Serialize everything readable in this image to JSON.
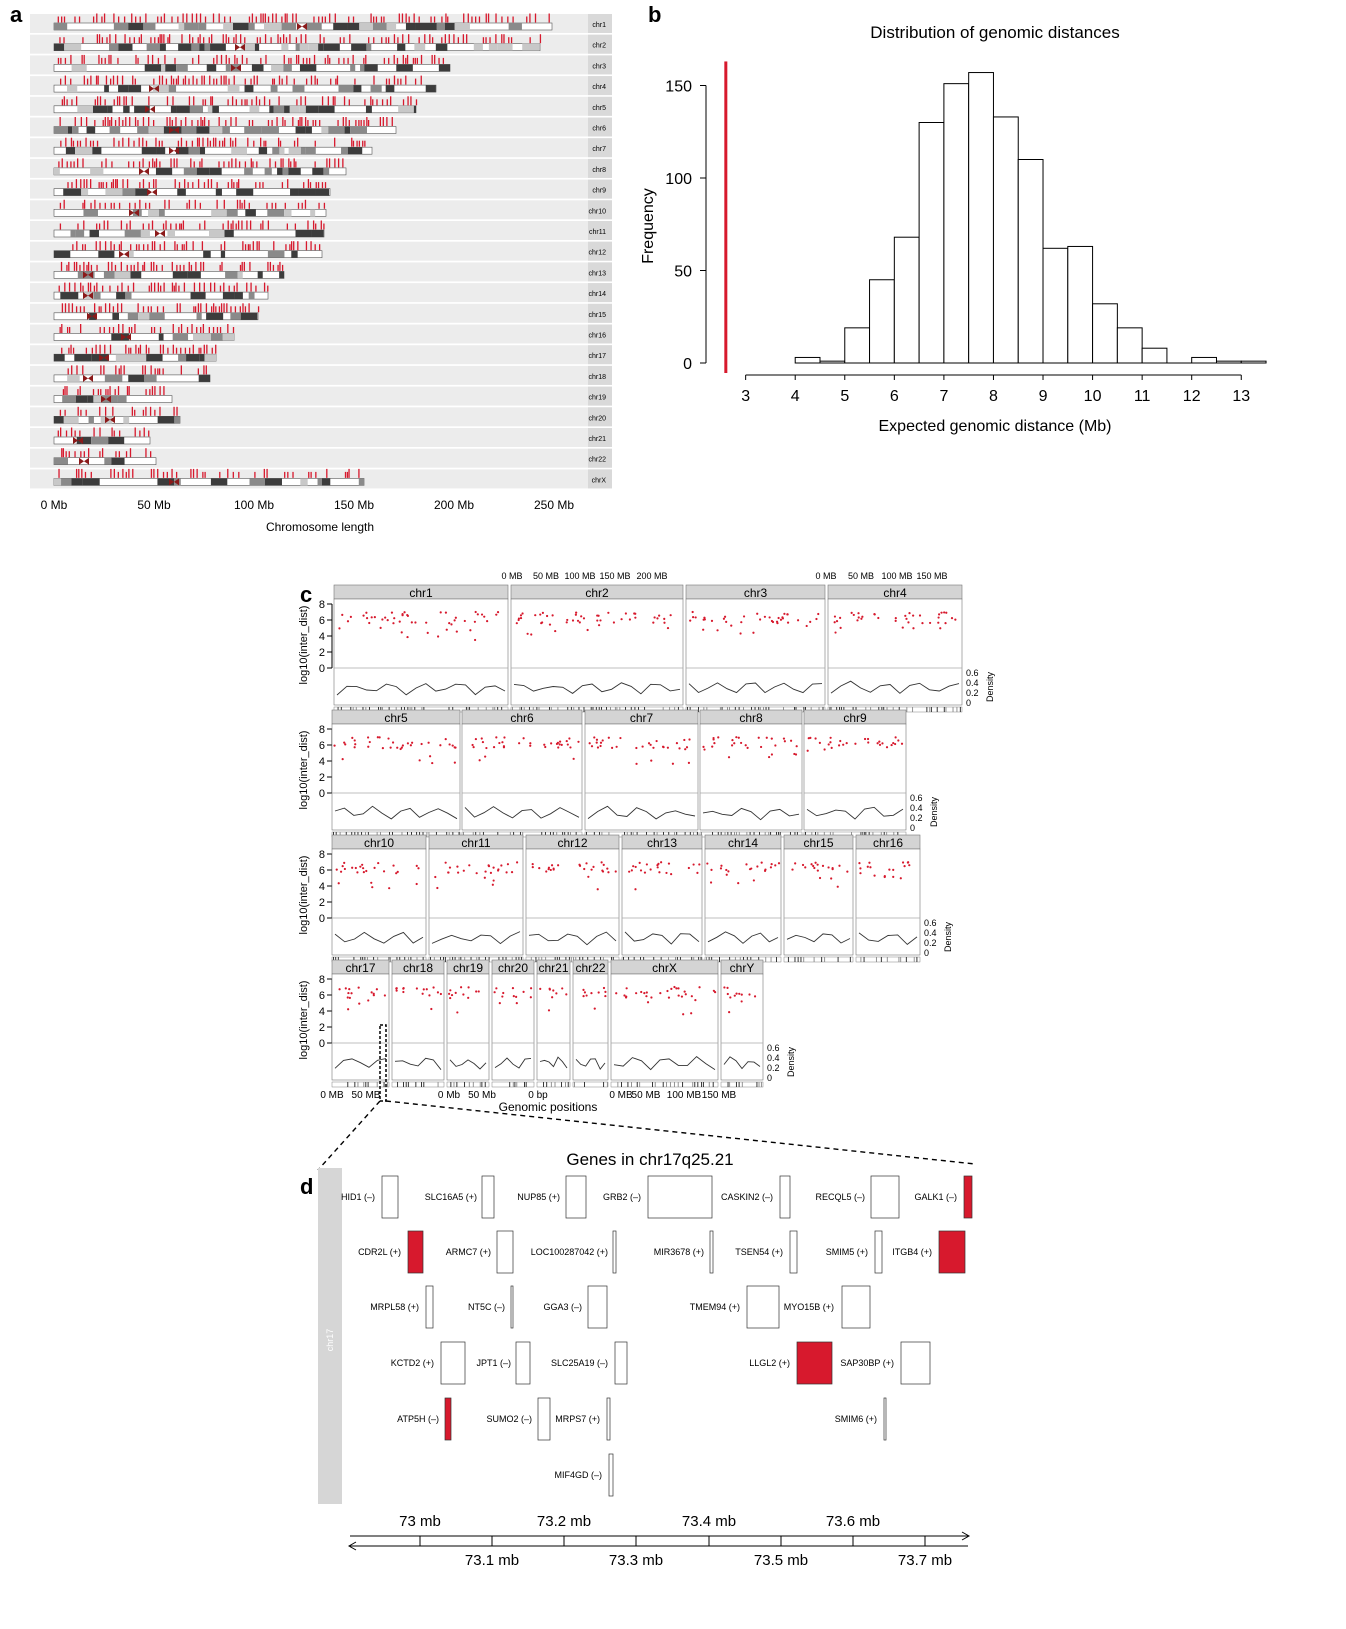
{
  "colors": {
    "red": "#d7192d",
    "dark": "#3c3c3c",
    "mid": "#8a8a8a",
    "light": "#c8c8c8",
    "band": "#ececec",
    "strip": "#d4d4d4"
  },
  "panel_labels": [
    "a",
    "b",
    "c",
    "d"
  ],
  "panel_a": {
    "chromosomes": [
      "chr1",
      "chr2",
      "chr3",
      "chr4",
      "chr5",
      "chr6",
      "chr7",
      "chr8",
      "chr9",
      "chr10",
      "chr11",
      "chr12",
      "chr13",
      "chr14",
      "chr15",
      "chr16",
      "chr17",
      "chr18",
      "chr19",
      "chr20",
      "chr21",
      "chr22",
      "chrX"
    ],
    "ticks": [
      "0 Mb",
      "50 Mb",
      "100 Mb",
      "150 Mb",
      "200 Mb",
      "250 Mb"
    ],
    "xlabel": "Chromosome length"
  },
  "panel_c": {
    "ylabel": "log10(inter_dist)",
    "density_label": "Density",
    "y_ticks": [
      "8",
      "6",
      "4",
      "2",
      "0"
    ],
    "density_ticks": [
      "0.6",
      "0.4",
      "0.2",
      "0"
    ],
    "top_ticks_1": [
      "0 MB",
      "50 MB",
      "100 MB",
      "150 MB",
      "200 MB"
    ],
    "top_ticks_2": [
      "0 MB",
      "50 MB",
      "100 MB",
      "150 MB"
    ],
    "rows": [
      [
        "chr1",
        "chr2",
        "chr3",
        "chr4"
      ],
      [
        "chr5",
        "chr6",
        "chr7",
        "chr8",
        "chr9"
      ],
      [
        "chr10",
        "chr11",
        "chr12",
        "chr13",
        "chr14",
        "chr15",
        "chr16"
      ],
      [
        "chr17",
        "chr18",
        "chr19",
        "chr20",
        "chr21",
        "chr22",
        "chrX",
        "chrY"
      ]
    ],
    "bottom_ticks": [
      "0 MB",
      "50 MB",
      "0 Mb",
      "50 Mb",
      "0 bp",
      "0 MB",
      "50 MB",
      "100 MB",
      "150 MB"
    ],
    "xlabel": "Genomic positions"
  },
  "panel_d": {
    "title": "Genes in chr17q25.21",
    "strip_label": "chr17",
    "genes": [
      {
        "label": "HID1 (–)",
        "hit": false
      },
      {
        "label": "SLC16A5 (+)",
        "hit": false
      },
      {
        "label": "NUP85 (+)",
        "hit": false
      },
      {
        "label": "GRB2 (–)",
        "hit": false
      },
      {
        "label": "CASKIN2 (–)",
        "hit": false
      },
      {
        "label": "RECQL5 (–)",
        "hit": false
      },
      {
        "label": "GALK1 (–)",
        "hit": true
      },
      {
        "label": "CDR2L (+)",
        "hit": true
      },
      {
        "label": "ARMC7 (+)",
        "hit": false
      },
      {
        "label": "LOC100287042 (+)",
        "hit": false
      },
      {
        "label": "MIR3678 (+)",
        "hit": false
      },
      {
        "label": "TSEN54 (+)",
        "hit": false
      },
      {
        "label": "SMIM5 (+)",
        "hit": false
      },
      {
        "label": "ITGB4 (+)",
        "hit": true
      },
      {
        "label": "MRPL58 (+)",
        "hit": false
      },
      {
        "label": "NT5C (–)",
        "hit": false
      },
      {
        "label": "GGA3 (–)",
        "hit": false
      },
      {
        "label": "TMEM94 (+)",
        "hit": false
      },
      {
        "label": "MYO15B (+)",
        "hit": false
      },
      {
        "label": "KCTD2 (+)",
        "hit": false
      },
      {
        "label": "JPT1 (–)",
        "hit": false
      },
      {
        "label": "SLC25A19 (–)",
        "hit": false
      },
      {
        "label": "LLGL2 (+)",
        "hit": true
      },
      {
        "label": "SAP30BP (+)",
        "hit": false
      },
      {
        "label": "ATP5H (–)",
        "hit": true
      },
      {
        "label": "SUMO2 (–)",
        "hit": false
      },
      {
        "label": "MRPS7 (+)",
        "hit": false
      },
      {
        "label": "SMIM6 (+)",
        "hit": false
      },
      {
        "label": "MIF4GD (–)",
        "hit": false
      }
    ],
    "axis_top": [
      "73 mb",
      "73.2 mb",
      "73.4 mb",
      "73.6 mb"
    ],
    "axis_bottom": [
      "73.1 mb",
      "73.3 mb",
      "73.5 mb",
      "73.7 mb"
    ]
  },
  "chart_data": [
    {
      "type": "bar",
      "panel": "a",
      "description_source": "ideogram of chromosome lengths",
      "categories": [
        "chr1",
        "chr2",
        "chr3",
        "chr4",
        "chr5",
        "chr6",
        "chr7",
        "chr8",
        "chr9",
        "chr10",
        "chr11",
        "chr12",
        "chr13",
        "chr14",
        "chr15",
        "chr16",
        "chr17",
        "chr18",
        "chr19",
        "chr20",
        "chr21",
        "chr22",
        "chrX"
      ],
      "values": [
        249,
        243,
        198,
        191,
        181,
        171,
        159,
        146,
        138,
        136,
        135,
        134,
        115,
        107,
        102,
        90,
        81,
        78,
        59,
        63,
        48,
        51,
        155
      ],
      "centromere": [
        124,
        93,
        91,
        50,
        48,
        60,
        60,
        45,
        49,
        40,
        53,
        35,
        17,
        17,
        19,
        36,
        25,
        17,
        26,
        28,
        12,
        15,
        60
      ],
      "title": "",
      "xlabel": "Chromosome length",
      "xticks": [
        "0 Mb",
        "50 Mb",
        "100 Mb",
        "150 Mb",
        "200 Mb",
        "250 Mb"
      ],
      "xlim": [
        0,
        250
      ]
    },
    {
      "type": "bar",
      "panel": "b",
      "title": "Distribution of genomic distances",
      "xlabel": "Expected genomic distance (Mb)",
      "ylabel": "Frequency",
      "bin_edges": [
        4,
        4.5,
        5,
        5.5,
        6,
        6.5,
        7,
        7.5,
        8,
        8.5,
        9,
        9.5,
        10,
        10.5,
        11,
        11.5,
        12,
        12.5,
        13,
        13.5
      ],
      "values": [
        3,
        1,
        19,
        45,
        68,
        130,
        151,
        157,
        133,
        110,
        62,
        63,
        32,
        19,
        8,
        0,
        3,
        1,
        1
      ],
      "observed_value": 2.6,
      "xlim": [
        2.2,
        13.6
      ],
      "ylim": [
        0,
        160
      ],
      "xticks": [
        3,
        4,
        5,
        6,
        7,
        8,
        9,
        10,
        11,
        12,
        13
      ],
      "yticks": [
        0,
        50,
        100,
        150
      ]
    },
    {
      "type": "scatter",
      "panel": "c",
      "xlabel": "Genomic positions",
      "ylabel": "log10(inter_dist)",
      "ylim": [
        0,
        8
      ],
      "density_ylim": [
        0,
        0.6
      ],
      "panels": [
        "chr1",
        "chr2",
        "chr3",
        "chr4",
        "chr5",
        "chr6",
        "chr7",
        "chr8",
        "chr9",
        "chr10",
        "chr11",
        "chr12",
        "chr13",
        "chr14",
        "chr15",
        "chr16",
        "chr17",
        "chr18",
        "chr19",
        "chr20",
        "chr21",
        "chr22",
        "chrX",
        "chrY"
      ]
    },
    {
      "type": "table",
      "panel": "d",
      "title": "Genes in chr17q25.21",
      "x_range_mb": [
        72.94,
        73.75
      ],
      "axis_ticks_mb": [
        73,
        73.1,
        73.2,
        73.3,
        73.4,
        73.5,
        73.6,
        73.7
      ]
    }
  ]
}
